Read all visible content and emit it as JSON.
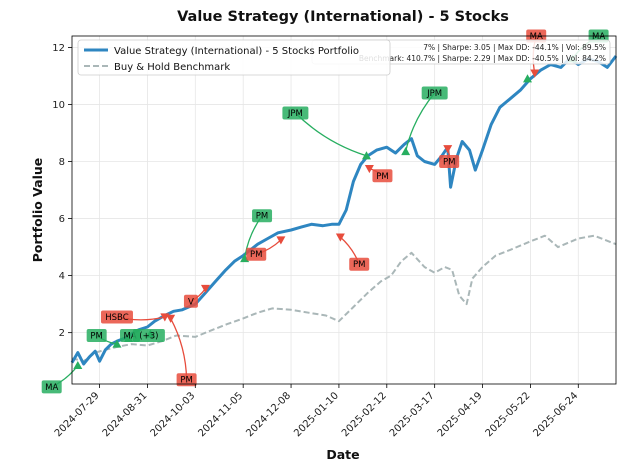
{
  "chart_data": {
    "type": "line",
    "title": "Value Strategy (International) - 5 Stocks",
    "xlabel": "Date",
    "ylabel": "Portfolio Value",
    "x_range": [
      "2024-07-10",
      "2025-07-20"
    ],
    "ylim": [
      0.2,
      12.4
    ],
    "grid": true,
    "legend_position": "top-left",
    "x_ticks": [
      "2024-07-29",
      "2024-08-31",
      "2024-10-03",
      "2024-11-05",
      "2024-12-08",
      "2025-01-10",
      "2025-02-12",
      "2025-03-17",
      "2025-04-19",
      "2025-05-22",
      "2025-06-24"
    ],
    "y_ticks": [
      2,
      4,
      6,
      8,
      10,
      12
    ],
    "colors": {
      "portfolio": "#2e86c1",
      "benchmark": "#aab7b8",
      "buy": "#27ae60",
      "sell": "#e74c3c"
    },
    "stats_box": {
      "portfolio": "7% | Sharpe: 3.05 | Max DD: -44.1% | Vol: 89.5%",
      "benchmark": "Benchmark: 410.7% | Sharpe: 2.29 | Max DD: -40.5% | Vol: 84.2%"
    },
    "series": [
      {
        "name": "Value Strategy (International) - 5 Stocks Portfolio",
        "style": "solid",
        "x": [
          "2024-07-10",
          "2024-07-14",
          "2024-07-18",
          "2024-07-22",
          "2024-07-26",
          "2024-07-29",
          "2024-08-02",
          "2024-08-06",
          "2024-08-10",
          "2024-08-15",
          "2024-08-20",
          "2024-08-25",
          "2024-08-31",
          "2024-09-05",
          "2024-09-12",
          "2024-09-18",
          "2024-09-24",
          "2024-10-03",
          "2024-10-10",
          "2024-10-17",
          "2024-10-24",
          "2024-10-30",
          "2024-11-05",
          "2024-11-10",
          "2024-11-15",
          "2024-11-22",
          "2024-11-29",
          "2024-12-08",
          "2024-12-15",
          "2024-12-22",
          "2024-12-30",
          "2025-01-05",
          "2025-01-10",
          "2025-01-15",
          "2025-01-20",
          "2025-01-25",
          "2025-01-30",
          "2025-02-05",
          "2025-02-12",
          "2025-02-18",
          "2025-02-24",
          "2025-03-01",
          "2025-03-05",
          "2025-03-10",
          "2025-03-17",
          "2025-03-22",
          "2025-03-26",
          "2025-03-28",
          "2025-04-01",
          "2025-04-05",
          "2025-04-10",
          "2025-04-14",
          "2025-04-19",
          "2025-04-25",
          "2025-05-01",
          "2025-05-08",
          "2025-05-15",
          "2025-05-22",
          "2025-05-29",
          "2025-06-05",
          "2025-06-12",
          "2025-06-18",
          "2025-06-24",
          "2025-07-01",
          "2025-07-08",
          "2025-07-14",
          "2025-07-20"
        ],
        "values": [
          0.95,
          1.3,
          0.9,
          1.15,
          1.35,
          1.0,
          1.4,
          1.6,
          1.7,
          1.8,
          1.95,
          2.1,
          2.2,
          2.4,
          2.6,
          2.75,
          2.8,
          3.0,
          3.4,
          3.8,
          4.2,
          4.5,
          4.7,
          4.9,
          5.1,
          5.3,
          5.5,
          5.6,
          5.7,
          5.8,
          5.75,
          5.8,
          5.8,
          6.3,
          7.3,
          7.9,
          8.2,
          8.4,
          8.5,
          8.3,
          8.6,
          8.8,
          8.2,
          8.0,
          7.9,
          8.2,
          8.5,
          7.1,
          8.1,
          8.7,
          8.4,
          7.7,
          8.4,
          9.3,
          9.9,
          10.2,
          10.5,
          10.9,
          11.2,
          11.4,
          11.3,
          11.6,
          11.4,
          11.6,
          11.5,
          11.3,
          11.7
        ]
      },
      {
        "name": "Buy & Hold Benchmark",
        "style": "dashed",
        "x": [
          "2024-07-10",
          "2024-07-18",
          "2024-07-26",
          "2024-08-02",
          "2024-08-10",
          "2024-08-20",
          "2024-08-31",
          "2024-09-10",
          "2024-09-20",
          "2024-10-03",
          "2024-10-15",
          "2024-10-25",
          "2024-11-05",
          "2024-11-15",
          "2024-11-25",
          "2024-12-08",
          "2024-12-20",
          "2025-01-01",
          "2025-01-10",
          "2025-01-20",
          "2025-01-30",
          "2025-02-08",
          "2025-02-15",
          "2025-02-22",
          "2025-03-01",
          "2025-03-10",
          "2025-03-17",
          "2025-03-24",
          "2025-03-29",
          "2025-04-03",
          "2025-04-08",
          "2025-04-12",
          "2025-04-19",
          "2025-04-28",
          "2025-05-08",
          "2025-05-22",
          "2025-06-01",
          "2025-06-10",
          "2025-06-24",
          "2025-07-05",
          "2025-07-20"
        ],
        "values": [
          1.1,
          1.0,
          1.3,
          1.4,
          1.5,
          1.6,
          1.55,
          1.7,
          1.9,
          1.85,
          2.1,
          2.3,
          2.5,
          2.7,
          2.85,
          2.8,
          2.7,
          2.6,
          2.4,
          2.9,
          3.4,
          3.8,
          4.0,
          4.5,
          4.8,
          4.3,
          4.1,
          4.3,
          4.2,
          3.3,
          3.0,
          3.9,
          4.3,
          4.7,
          4.9,
          5.2,
          5.4,
          5.0,
          5.3,
          5.4,
          5.1
        ]
      }
    ],
    "trades": [
      {
        "label": "MA",
        "side": "buy",
        "date": "2024-07-14",
        "value": 0.85,
        "label_date": "2024-06-26",
        "label_value": 0.1
      },
      {
        "label": "PM",
        "side": "buy",
        "date": "2024-08-10",
        "value": 1.6,
        "label_date": "2024-07-27",
        "label_value": 1.9
      },
      {
        "label": "MA",
        "side": "buy",
        "date": "2024-08-18",
        "value": 1.8,
        "label_date": "2024-08-19",
        "label_value": 1.9
      },
      {
        "label": "(+3)",
        "side": "buy",
        "date": "2024-09-02",
        "value": 1.95,
        "label_date": "2024-09-01",
        "label_value": 1.9
      },
      {
        "label": "HSBC",
        "side": "sell",
        "date": "2024-09-12",
        "value": 2.55,
        "label_date": "2024-08-10",
        "label_value": 2.55
      },
      {
        "label": "PM",
        "side": "sell",
        "date": "2024-09-16",
        "value": 2.5,
        "label_date": "2024-09-27",
        "label_value": 0.35
      },
      {
        "label": "V",
        "side": "sell",
        "date": "2024-10-10",
        "value": 3.55,
        "label_date": "2024-09-30",
        "label_value": 3.1
      },
      {
        "label": "PM",
        "side": "buy",
        "date": "2024-11-06",
        "value": 4.6,
        "label_date": "2024-11-18",
        "label_value": 6.1
      },
      {
        "label": "PM",
        "side": "sell",
        "date": "2024-12-01",
        "value": 5.25,
        "label_date": "2024-11-14",
        "label_value": 4.75
      },
      {
        "label": "JPM",
        "side": "buy",
        "date": "2025-01-29",
        "value": 8.2,
        "label_date": "2024-12-11",
        "label_value": 9.7
      },
      {
        "label": "PM",
        "side": "sell",
        "date": "2025-01-11",
        "value": 5.35,
        "label_date": "2025-01-24",
        "label_value": 4.4
      },
      {
        "label": "PM",
        "side": "sell",
        "date": "2025-01-31",
        "value": 7.75,
        "label_date": "2025-02-09",
        "label_value": 7.5
      },
      {
        "label": "JPM",
        "side": "buy",
        "date": "2025-02-25",
        "value": 8.35,
        "label_date": "2025-03-17",
        "label_value": 10.4
      },
      {
        "label": "PM",
        "side": "sell",
        "date": "2025-03-26",
        "value": 8.45,
        "label_date": "2025-03-27",
        "label_value": 8.0
      },
      {
        "label": "MA",
        "side": "sell",
        "date": "2025-05-25",
        "value": 11.1,
        "label_date": "2025-05-26",
        "label_value": 12.4
      },
      {
        "label": "MA",
        "side": "buy",
        "date": "2025-06-20",
        "value": 11.6,
        "label_date": "2025-07-08",
        "label_value": 12.4
      },
      {
        "label": "",
        "side": "buy",
        "date": "2025-05-20",
        "value": 10.9,
        "label_date": "2025-05-20",
        "label_value": 10.9
      }
    ]
  }
}
